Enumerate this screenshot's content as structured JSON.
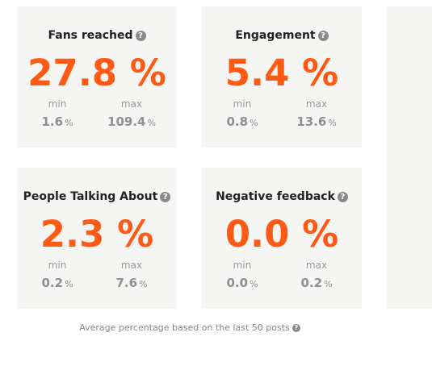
{
  "cards": [
    {
      "title": "Fans reached",
      "value": "27.8 %",
      "min_label": "min",
      "min_value": "1.6",
      "max_label": "max",
      "max_value": "109.4",
      "unit": "%"
    },
    {
      "title": "Engagement",
      "value": "5.4 %",
      "min_label": "min",
      "min_value": "0.8",
      "max_label": "max",
      "max_value": "13.6",
      "unit": "%"
    },
    {
      "title": "People Talking About",
      "value": "2.3 %",
      "min_label": "min",
      "min_value": "0.2",
      "max_label": "max",
      "max_value": "7.6",
      "unit": "%"
    },
    {
      "title": "Negative feedback",
      "value": "0.0 %",
      "min_label": "min",
      "min_value": "0.0",
      "max_label": "max",
      "max_value": "0.2",
      "unit": "%"
    }
  ],
  "help_glyph": "?",
  "footer": {
    "note": "Average percentage based on the last 50 posts"
  },
  "colors": {
    "accent": "#ff5a14",
    "card_bg": "#f5f5f3",
    "muted_text": "#8f8f8f"
  },
  "icons": {
    "help": "question-circle-icon"
  }
}
